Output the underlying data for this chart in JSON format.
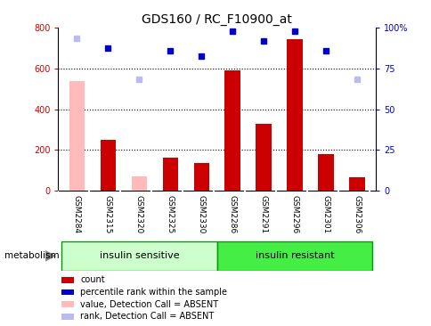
{
  "title": "GDS160 / RC_F10900_at",
  "samples": [
    "GSM2284",
    "GSM2315",
    "GSM2320",
    "GSM2325",
    "GSM2330",
    "GSM2286",
    "GSM2291",
    "GSM2296",
    "GSM2301",
    "GSM2306"
  ],
  "count_red": [
    null,
    248,
    null,
    162,
    135,
    590,
    330,
    745,
    178,
    65
  ],
  "count_pink": [
    540,
    null,
    72,
    null,
    null,
    null,
    null,
    null,
    null,
    null
  ],
  "rank_blue": [
    null,
    700,
    null,
    685,
    660,
    785,
    735,
    785,
    685,
    null
  ],
  "rank_lightblue": [
    750,
    null,
    548,
    null,
    null,
    null,
    null,
    null,
    null,
    548
  ],
  "ylim_left": [
    0,
    800
  ],
  "ylim_right": [
    0,
    100
  ],
  "yticks_left": [
    0,
    200,
    400,
    600,
    800
  ],
  "yticks_right": [
    0,
    25,
    50,
    75,
    100
  ],
  "group1_label": "insulin sensitive",
  "group2_label": "insulin resistant",
  "legend_labels": [
    "count",
    "percentile rank within the sample",
    "value, Detection Call = ABSENT",
    "rank, Detection Call = ABSENT"
  ],
  "legend_colors": [
    "#cc0000",
    "#0000cc",
    "#ffbbbb",
    "#bbbbee"
  ],
  "metabolism_label": "metabolism",
  "bar_width": 0.5,
  "group_color1": "#ccffcc",
  "group_color2": "#44ee44",
  "sample_bg_color": "#cccccc",
  "red_color": "#cc0000",
  "pink_color": "#ffbbbb",
  "blue_color": "#0000cc",
  "lightblue_color": "#bbbbee"
}
